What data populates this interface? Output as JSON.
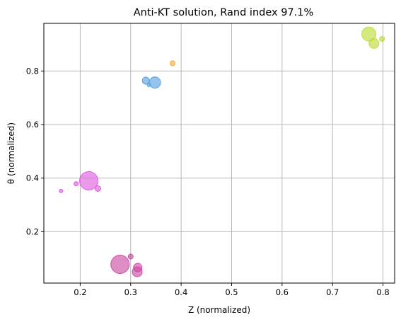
{
  "chart_data": {
    "type": "scatter",
    "title": "Anti-KT solution, Rand index 97.1%",
    "xlabel": "Z (normalized)",
    "ylabel": "θ (normalized)",
    "xlim": [
      0.128,
      0.823
    ],
    "ylim": [
      0.008,
      0.978
    ],
    "xticks": [
      0.2,
      0.3,
      0.4,
      0.5,
      0.6,
      0.7,
      0.8
    ],
    "xtick_labels": [
      "0.2",
      "0.3",
      "0.4",
      "0.5",
      "0.6",
      "0.7",
      "0.8"
    ],
    "yticks": [
      0.2,
      0.4,
      0.6,
      0.8
    ],
    "ytick_labels": [
      "0.2",
      "0.4",
      "0.6",
      "0.8"
    ],
    "grid": true,
    "series": [
      {
        "color": "#dd55dd",
        "points": [
          {
            "x": 0.217,
            "y": 0.39,
            "size": 13
          },
          {
            "x": 0.235,
            "y": 0.361,
            "size": 4
          },
          {
            "x": 0.192,
            "y": 0.379,
            "size": 3
          },
          {
            "x": 0.162,
            "y": 0.352,
            "size": 2.5
          }
        ]
      },
      {
        "color": "#c9439e",
        "points": [
          {
            "x": 0.279,
            "y": 0.078,
            "size": 13
          },
          {
            "x": 0.313,
            "y": 0.05,
            "size": 7
          },
          {
            "x": 0.314,
            "y": 0.066,
            "size": 6
          },
          {
            "x": 0.3,
            "y": 0.107,
            "size": 3.5
          }
        ]
      },
      {
        "color": "#4f9be0",
        "points": [
          {
            "x": 0.348,
            "y": 0.757,
            "size": 8
          },
          {
            "x": 0.33,
            "y": 0.764,
            "size": 5
          },
          {
            "x": 0.336,
            "y": 0.748,
            "size": 2.5
          }
        ]
      },
      {
        "color": "#f2aa33",
        "points": [
          {
            "x": 0.383,
            "y": 0.829,
            "size": 3.5
          }
        ]
      },
      {
        "color": "#b8db2e",
        "points": [
          {
            "x": 0.772,
            "y": 0.938,
            "size": 10
          },
          {
            "x": 0.782,
            "y": 0.903,
            "size": 7
          },
          {
            "x": 0.798,
            "y": 0.92,
            "size": 3.5
          }
        ]
      }
    ]
  }
}
